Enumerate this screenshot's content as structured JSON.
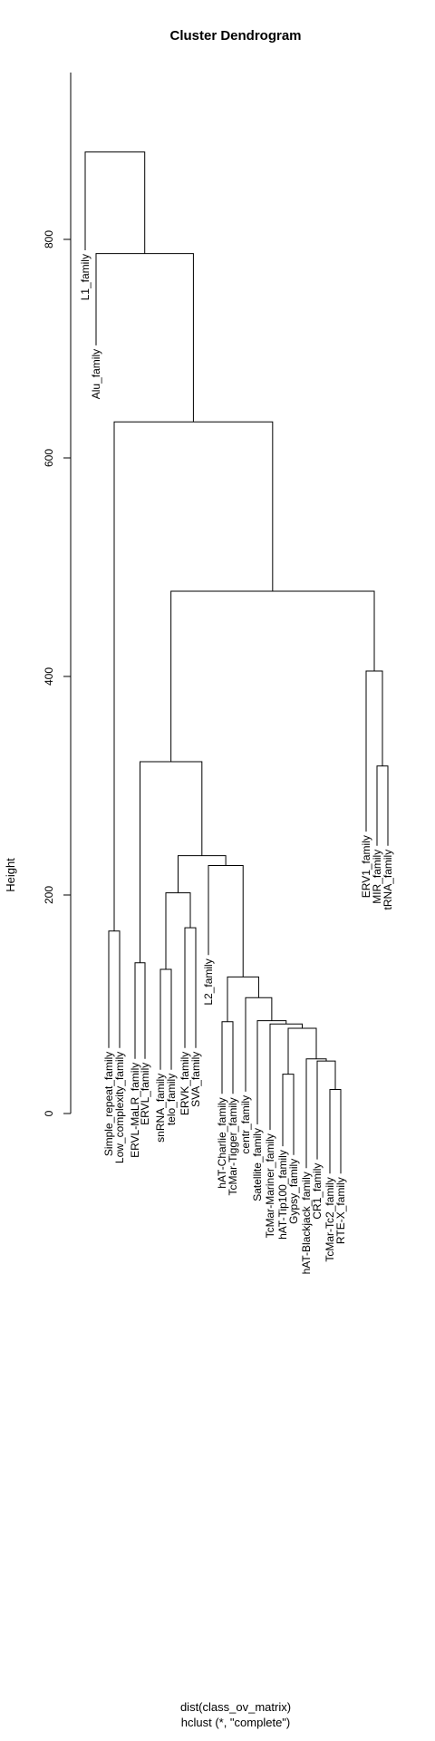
{
  "chart_data": {
    "type": "dendrogram",
    "title": "Cluster Dendrogram",
    "ylabel": "Height",
    "sub_line1": "dist(class_ov_matrix)",
    "sub_line2": "hclust (*, \"complete\")",
    "ylim": [
      0,
      900
    ],
    "yticks": [
      0,
      200,
      400,
      600,
      800
    ],
    "ytick_labels": [
      "0",
      "200",
      "400",
      "600",
      "800"
    ],
    "leaves": [
      "L1_family",
      "Alu_family",
      "Simple_repeat_family",
      "Low_complexity_family",
      "ERVL-MaLR_family",
      "ERVL_family",
      "snRNA_family",
      "telo_family",
      "ERVK_family",
      "SVA_family",
      "L2_family",
      "hAT-Charlie_family",
      "TcMar-Tigger_family",
      "centr_family",
      "Satellite_family",
      "TcMar-Mariner_family",
      "hAT-Tip100_family",
      "Gypsy_family",
      "hAT-Blackjack_family",
      "CR1_family",
      "TcMar-Tc2_family",
      "RTE-X_family",
      "ERV1_family",
      "MIR_family",
      "tRNA_family"
    ],
    "leaf_heights": [
      790,
      703,
      60,
      60,
      50,
      50,
      40,
      40,
      60,
      60,
      145,
      18,
      18,
      20,
      -10,
      -15,
      -30,
      -38,
      -50,
      -42,
      -55,
      -55,
      258,
      245,
      245
    ],
    "merges": [
      [
        "Simple_repeat_family",
        "Low_complexity_family",
        167
      ],
      [
        "ERVL-MaLR_family",
        "ERVL_family",
        138
      ],
      [
        "snRNA_family",
        "telo_family",
        132
      ],
      [
        "ERVK_family",
        "SVA_family",
        170
      ],
      [
        "hAT-Charlie_family",
        "TcMar-Tigger_family",
        84
      ],
      [
        "TcMar-Tc2_family",
        "RTE-X_family",
        22
      ],
      [
        "CR1_family",
        "(TcMar-Tc2_family,RTE-X_family)",
        48
      ],
      [
        "hAT-Blackjack_family",
        "(CR1_family,TcMar-Tc2_family,RTE-X_family)",
        50
      ],
      [
        "hAT-Tip100_family",
        "Gypsy_family",
        36
      ],
      [
        "(hAT-Tip100_family,Gypsy_family)",
        "(hAT-Blackjack_family,...)",
        78
      ],
      [
        "TcMar-Mariner_family",
        "(hAT-Tip100_family,...)",
        82
      ],
      [
        "Satellite_family",
        "(TcMar-Mariner_family,...)",
        85
      ],
      [
        "centr_family",
        "(Satellite_family,...)",
        106
      ],
      [
        "(hAT-Charlie_family,TcMar-Tigger_family)",
        "(centr_family,...)",
        125
      ],
      [
        "L2_family",
        "(hAT-Charlie_family,...)",
        227
      ],
      [
        "(snRNA_family,telo_family)",
        "(ERVK_family,SVA_family)",
        202
      ],
      [
        "(snRNA_family,...)",
        "(L2_family,...)",
        236
      ],
      [
        "(ERVL-MaLR_family,ERVL_family)",
        "(snRNA_family,...)",
        322
      ],
      [
        "MIR_family",
        "tRNA_family",
        318
      ],
      [
        "ERV1_family",
        "(MIR_family,tRNA_family)",
        405
      ],
      [
        "(ERVL-MaLR_family,...)",
        "(ERV1_family,...)",
        478
      ],
      [
        "(Simple_repeat_family,Low_complexity_family)",
        "(ERVL-MaLR_family,...)",
        633
      ],
      [
        "Alu_family",
        "(Simple_repeat_family,...)",
        787
      ],
      [
        "L1_family",
        "(Alu_family,...)",
        880
      ]
    ]
  }
}
